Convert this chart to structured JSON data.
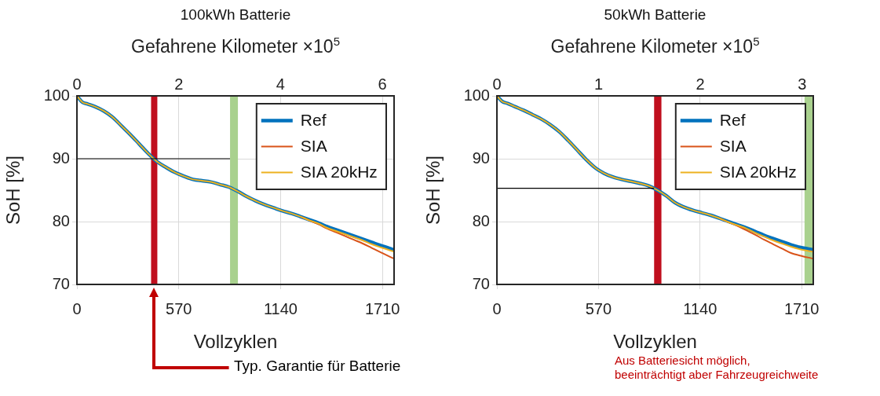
{
  "chart_data": [
    {
      "type": "line",
      "title": "100kWh Batterie",
      "xlabel": "Vollzyklen",
      "x2label": "Gefahrene Kilometer ×10$^{5}$",
      "ylabel": "SoH [%]",
      "x": [
        0,
        30,
        60,
        100,
        150,
        200,
        250,
        300,
        350,
        400,
        450,
        500,
        550,
        600,
        650,
        700,
        750,
        800,
        850,
        900,
        950,
        1000,
        1050,
        1100,
        1150,
        1200,
        1250,
        1300,
        1350,
        1400,
        1450,
        1500,
        1550,
        1600,
        1650,
        1700,
        1775
      ],
      "series": [
        {
          "name": "Ref",
          "color": "#0072bd",
          "values": [
            100,
            99.0,
            98.7,
            98.3,
            97.6,
            96.6,
            95.2,
            93.8,
            92.3,
            90.8,
            89.5,
            88.6,
            87.8,
            87.2,
            86.7,
            86.5,
            86.3,
            85.9,
            85.5,
            84.8,
            84.0,
            83.3,
            82.7,
            82.2,
            81.7,
            81.3,
            80.8,
            80.3,
            79.8,
            79.2,
            78.7,
            78.2,
            77.7,
            77.2,
            76.7,
            76.2,
            75.5
          ]
        },
        {
          "name": "SIA",
          "color": "#d95319",
          "values": [
            null,
            null,
            null,
            null,
            null,
            null,
            null,
            null,
            null,
            null,
            null,
            null,
            null,
            null,
            null,
            null,
            null,
            null,
            null,
            null,
            null,
            null,
            null,
            null,
            null,
            null,
            80.8,
            80.2,
            79.6,
            78.9,
            78.3,
            77.7,
            77.1,
            76.5,
            75.8,
            75.1,
            74.1
          ]
        },
        {
          "name": "SIA 20kHz",
          "color": "#edb120",
          "values": [
            100,
            99.0,
            98.7,
            98.3,
            97.6,
            96.6,
            95.2,
            93.8,
            92.3,
            90.8,
            89.5,
            88.6,
            87.8,
            87.2,
            86.7,
            86.5,
            86.3,
            85.9,
            85.5,
            84.8,
            84.0,
            83.3,
            82.7,
            82.2,
            81.7,
            81.3,
            80.8,
            80.2,
            79.7,
            79.0,
            78.5,
            78.0,
            77.5,
            77.0,
            76.4,
            75.9,
            75.2
          ]
        },
        {
          "color": "#000000",
          "x": [
            0,
            857
          ],
          "values": [
            90,
            90
          ]
        }
      ],
      "xlim": [
        0,
        1775
      ],
      "xticks": [
        0,
        570,
        1140,
        1710
      ],
      "x2lim": [
        0,
        6.23
      ],
      "x2ticks": [
        0,
        2,
        4,
        6
      ],
      "ylim": [
        70,
        100
      ],
      "yticks": [
        70,
        80,
        90,
        100
      ],
      "bands": [
        {
          "axis": "x",
          "from": 415,
          "to": 450,
          "color": "#c00f1e"
        },
        {
          "axis": "x",
          "from": 857,
          "to": 901,
          "color": "#a9d18e"
        }
      ],
      "grid": true,
      "legend": "top right",
      "annotations": [
        "Typ. Garantie für Batterie"
      ]
    },
    {
      "type": "line",
      "title": "50kWh Batterie",
      "xlabel": "Vollzyklen",
      "x2label": "Gefahrene Kilometer ×10$^{5}$",
      "ylabel": "SoH [%]",
      "x": [
        0,
        30,
        60,
        100,
        150,
        200,
        250,
        300,
        350,
        400,
        450,
        500,
        550,
        600,
        650,
        700,
        750,
        800,
        850,
        900,
        950,
        1000,
        1050,
        1100,
        1150,
        1200,
        1250,
        1300,
        1350,
        1400,
        1450,
        1500,
        1550,
        1600,
        1650,
        1700,
        1775
      ],
      "series": [
        {
          "name": "Ref",
          "color": "#0072bd",
          "values": [
            100,
            99.1,
            98.8,
            98.3,
            97.7,
            97.0,
            96.3,
            95.4,
            94.3,
            92.9,
            91.4,
            89.9,
            88.6,
            87.7,
            87.1,
            86.7,
            86.4,
            86.1,
            85.7,
            85.0,
            84.1,
            83.0,
            82.3,
            81.8,
            81.4,
            81.0,
            80.5,
            80.0,
            79.5,
            79.0,
            78.4,
            77.8,
            77.3,
            76.8,
            76.3,
            75.9,
            75.5
          ]
        },
        {
          "name": "SIA",
          "color": "#d95319",
          "values": [
            null,
            null,
            null,
            null,
            null,
            null,
            null,
            null,
            null,
            null,
            null,
            null,
            null,
            null,
            null,
            null,
            null,
            null,
            null,
            null,
            null,
            null,
            null,
            null,
            null,
            null,
            80.5,
            79.9,
            79.3,
            78.6,
            77.9,
            77.1,
            76.4,
            75.7,
            75.0,
            74.6,
            74.1
          ]
        },
        {
          "name": "SIA 20kHz",
          "color": "#edb120",
          "values": [
            100,
            99.1,
            98.8,
            98.3,
            97.7,
            97.0,
            96.3,
            95.4,
            94.3,
            92.9,
            91.4,
            89.9,
            88.6,
            87.7,
            87.1,
            86.7,
            86.4,
            86.1,
            85.7,
            85.0,
            84.1,
            83.0,
            82.3,
            81.8,
            81.4,
            81.0,
            80.5,
            79.9,
            79.4,
            78.9,
            78.2,
            77.6,
            77.0,
            76.5,
            76.0,
            75.6,
            75.2
          ]
        },
        {
          "color": "#000000",
          "x": [
            0,
            882
          ],
          "values": [
            85.3,
            85.3
          ]
        }
      ],
      "xlim": [
        0,
        1775
      ],
      "xticks": [
        0,
        570,
        1140,
        1710
      ],
      "x2lim": [
        0,
        3.11
      ],
      "x2ticks": [
        0,
        1,
        2,
        3
      ],
      "ylim": [
        70,
        100
      ],
      "yticks": [
        70,
        80,
        90,
        100
      ],
      "bands": [
        {
          "axis": "x",
          "from": 882,
          "to": 923,
          "color": "#c00f1e"
        },
        {
          "axis": "x",
          "from": 1726,
          "to": 1775,
          "color": "#a9d18e"
        }
      ],
      "grid": true,
      "legend": "top right",
      "annotations": [
        "Aus Batteriesicht möglich,\nbeeinträchtigt aber Fahrzeugreichweite"
      ]
    }
  ]
}
